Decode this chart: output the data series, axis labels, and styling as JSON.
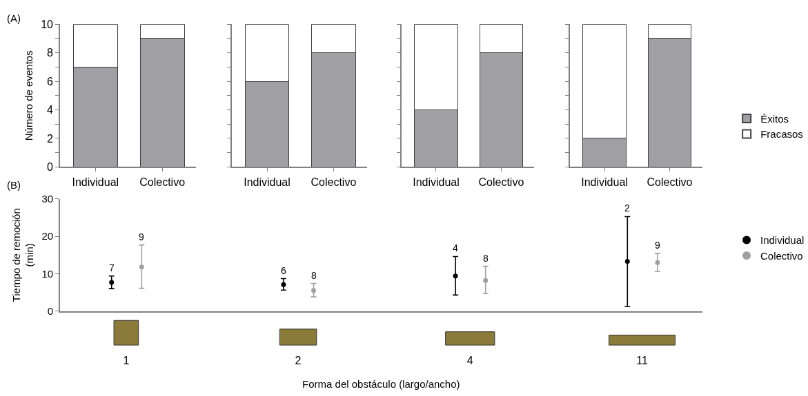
{
  "chart_data": [
    {
      "type": "bar",
      "title": "(A)",
      "ylabel": "Número de eventos",
      "categories": [
        "Individual",
        "Colectivo"
      ],
      "stacked": true,
      "series": [
        {
          "color": "#a09fa4",
          "values": [
            7,
            9
          ]
        },
        {
          "color": "#ffffff",
          "values": [
            3,
            1
          ]
        }
      ],
      "ylim": [
        0,
        10
      ],
      "yticks": [
        0,
        {
          "value": 1,
          "label": null
        },
        2,
        {
          "value": 3,
          "label": null
        },
        4,
        {
          "value": 5,
          "label": null
        },
        6,
        {
          "value": 7,
          "label": null
        },
        8,
        {
          "value": 9,
          "label": null
        },
        10
      ]
    },
    {
      "type": "bar",
      "categories": [
        "Individual",
        "Colectivo"
      ],
      "stacked": true,
      "tick_labels": "x",
      "series": [
        {
          "color": "#a09fa4",
          "values": [
            6,
            8
          ]
        },
        {
          "color": "#ffffff",
          "values": [
            4,
            2
          ]
        }
      ],
      "ylim": [
        0,
        10
      ],
      "yticks": [
        0,
        {
          "value": 1,
          "label": null
        },
        2,
        {
          "value": 3,
          "label": null
        },
        4,
        {
          "value": 5,
          "label": null
        },
        6,
        {
          "value": 7,
          "label": null
        },
        8,
        {
          "value": 9,
          "label": null
        },
        10
      ]
    },
    {
      "type": "bar",
      "categories": [
        "Individual",
        "Colectivo"
      ],
      "stacked": true,
      "tick_labels": "x",
      "series": [
        {
          "color": "#a09fa4",
          "values": [
            4,
            8
          ]
        },
        {
          "color": "#ffffff",
          "values": [
            6,
            2
          ]
        }
      ],
      "ylim": [
        0,
        10
      ],
      "yticks": [
        0,
        {
          "value": 1,
          "label": null
        },
        2,
        {
          "value": 3,
          "label": null
        },
        4,
        {
          "value": 5,
          "label": null
        },
        6,
        {
          "value": 7,
          "label": null
        },
        8,
        {
          "value": 9,
          "label": null
        },
        10
      ]
    },
    {
      "type": "bar",
      "categories": [
        "Individual",
        "Colectivo"
      ],
      "stacked": true,
      "tick_labels": "x",
      "legend": "right",
      "series": [
        {
          "name": "Éxitos",
          "color": "#a09fa4",
          "values": [
            2,
            9
          ]
        },
        {
          "name": "Fracasos",
          "color": "#ffffff",
          "values": [
            8,
            1
          ]
        }
      ],
      "ylim": [
        0,
        10
      ],
      "yticks": [
        0,
        {
          "value": 1,
          "label": null
        },
        2,
        {
          "value": 3,
          "label": null
        },
        4,
        {
          "value": 5,
          "label": null
        },
        6,
        {
          "value": 7,
          "label": null
        },
        8,
        {
          "value": 9,
          "label": null
        },
        10
      ]
    },
    {
      "type": "scatter",
      "title": "(B)",
      "xlabel": "Forma del obstáculo (largo/ancho)",
      "ylabel": "Tiempo de remoción\n(min)",
      "categories": [
        "1",
        "2",
        "4",
        "11"
      ],
      "marker": "circle",
      "legend": "right",
      "series": [
        {
          "name": "Individual",
          "color": "#000000",
          "values": [
            7.7,
            7.1,
            9.4,
            13.3
          ],
          "errors": [
            [
              6.0,
              9.4
            ],
            [
              5.6,
              8.7
            ],
            [
              4.3,
              14.6
            ],
            [
              1.2,
              25.3
            ]
          ]
        },
        {
          "name": "Colectivo",
          "color": "#a0a0a0",
          "values": [
            11.8,
            5.5,
            8.2,
            13.0
          ],
          "errors": [
            [
              6.1,
              17.7
            ],
            [
              3.8,
              7.4
            ],
            [
              4.7,
              12.0
            ],
            [
              10.6,
              15.4
            ]
          ]
        }
      ],
      "ylim": [
        0,
        30
      ],
      "yticks": [
        0,
        10,
        20,
        30
      ],
      "annotations": [
        "7",
        "9",
        "6",
        "8",
        "4",
        "8",
        "2",
        "9"
      ]
    }
  ]
}
